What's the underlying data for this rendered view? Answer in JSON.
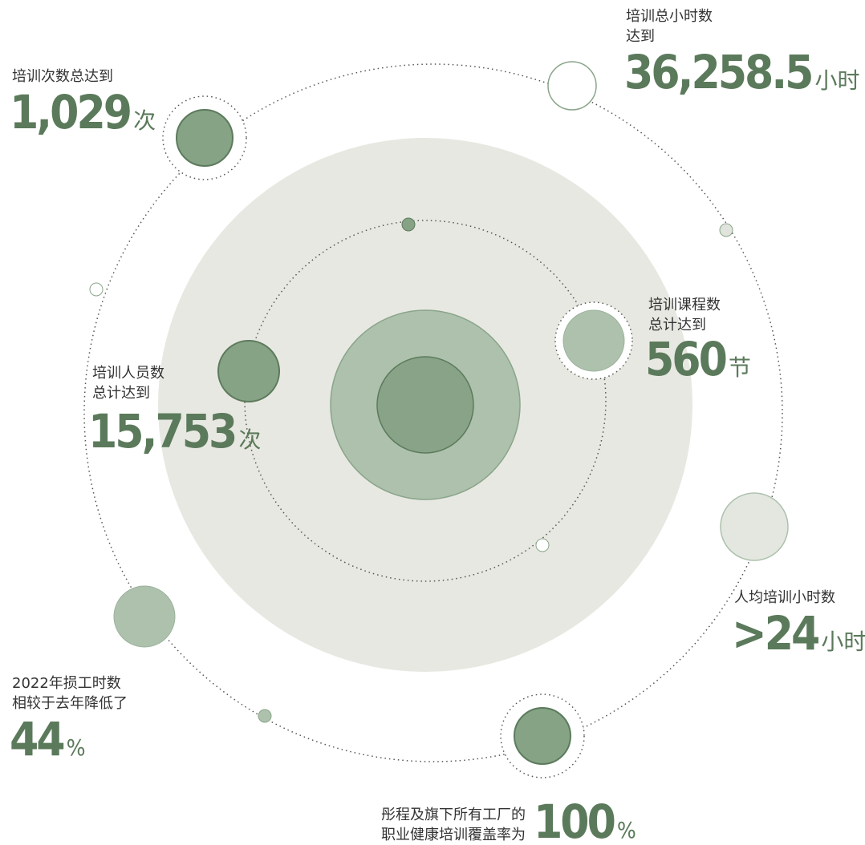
{
  "stats": [
    {
      "label": [
        "培训次数总达到"
      ],
      "value": "1,029",
      "unit": "次"
    },
    {
      "label": [
        "培训总小时数",
        "达到"
      ],
      "value": "36,258.5",
      "unit": "小时"
    },
    {
      "label": [
        "培训课程数",
        "总计达到"
      ],
      "value": "560",
      "unit": "节"
    },
    {
      "label": [
        "培训人员数",
        "总计达到"
      ],
      "value": "15,753",
      "unit": "次"
    },
    {
      "label": [
        "人均培训小时数"
      ],
      "value": ">24",
      "unit": "小时"
    },
    {
      "label": [
        "2022年损工时数",
        "相较于去年降低了"
      ],
      "value": "44",
      "unit": "%"
    },
    {
      "label": [
        "彤程及旗下所有工厂的",
        "职业健康培训覆盖率为"
      ],
      "value": "100",
      "unit": "%"
    }
  ]
}
